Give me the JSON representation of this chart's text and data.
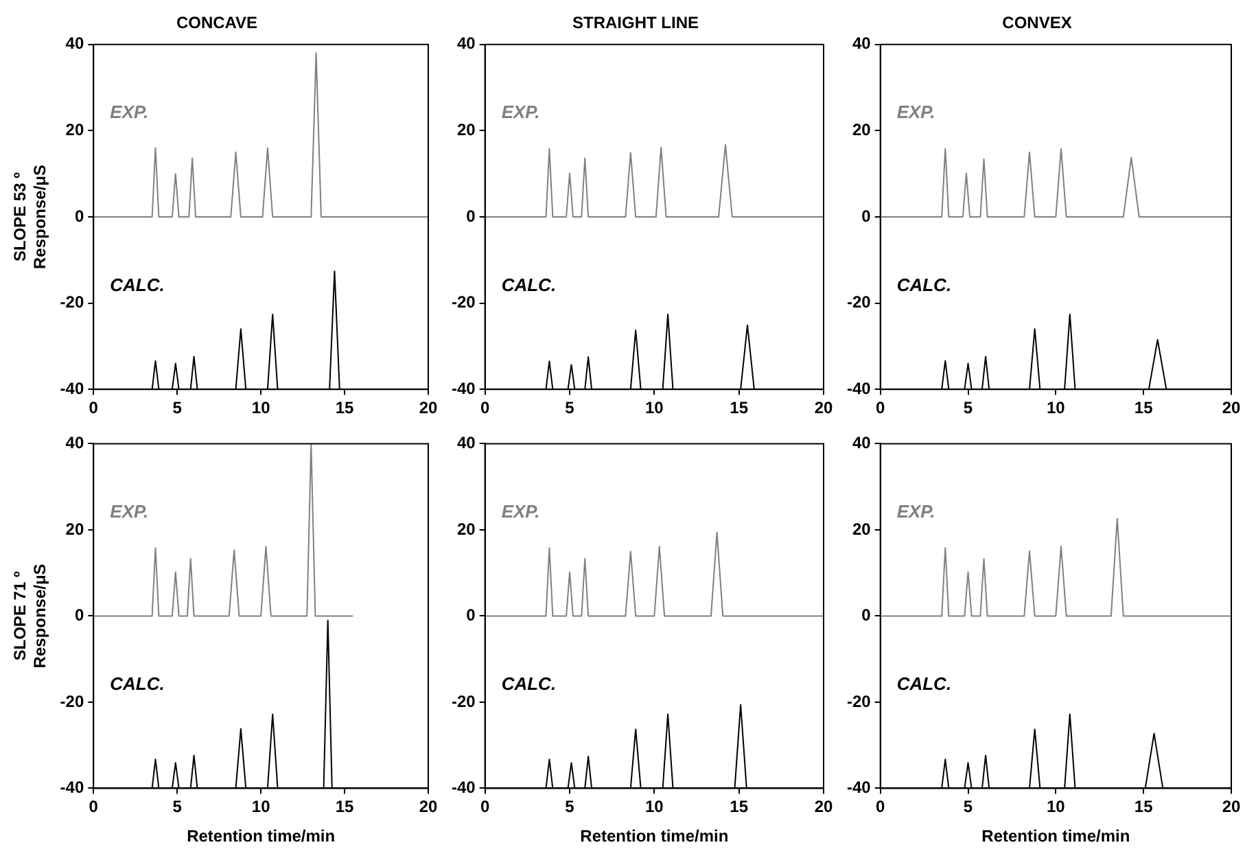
{
  "chart_data": [
    {
      "type": "line",
      "title": "CONCAVE",
      "ylabel": "SLOPE 53 º\nResponse/μS",
      "xlim": [
        0,
        20
      ],
      "ylim": [
        -40,
        40
      ],
      "xticks": [
        0,
        5,
        10,
        15,
        20
      ],
      "yticks": [
        -40,
        -20,
        0,
        20,
        40
      ],
      "grid": false,
      "legend": false,
      "marker": "none",
      "line_style": "solid",
      "series": [
        {
          "name": "EXP.",
          "color": "#808080",
          "x": [
            0,
            3.5,
            3.7,
            3.9,
            4.7,
            4.9,
            5.1,
            5.7,
            5.9,
            6.1,
            8.2,
            8.5,
            8.8,
            10.1,
            10.4,
            10.7,
            13.0,
            13.3,
            13.6,
            20
          ],
          "values": [
            0,
            0,
            16,
            0,
            0,
            10,
            0,
            0,
            13.6,
            0,
            0,
            15,
            0,
            0,
            16,
            0,
            0,
            38,
            0,
            0
          ]
        },
        {
          "name": "CALC.",
          "color": "#000000",
          "x": [
            3.3,
            3.5,
            3.7,
            3.9,
            4.7,
            4.9,
            5.1,
            5.8,
            6.0,
            6.2,
            8.5,
            8.8,
            9.1,
            10.4,
            10.7,
            11.0,
            14.1,
            14.4,
            14.7,
            17
          ],
          "values": [
            -40,
            -40,
            -33.4,
            -40,
            -40,
            -34,
            -40,
            -40,
            -32.4,
            -40,
            -40,
            -26,
            -40,
            -40,
            -22.6,
            -40,
            -40,
            -12.6,
            -40,
            -40
          ]
        }
      ]
    },
    {
      "type": "line",
      "title": "STRAIGHT LINE",
      "xlim": [
        0,
        20
      ],
      "ylim": [
        -40,
        40
      ],
      "xticks": [
        0,
        5,
        10,
        15,
        20
      ],
      "yticks": [
        -40,
        -20,
        0,
        20,
        40
      ],
      "grid": false,
      "legend": false,
      "marker": "none",
      "line_style": "solid",
      "series": [
        {
          "name": "EXP.",
          "color": "#808080",
          "x": [
            0,
            3.6,
            3.8,
            4.0,
            4.8,
            5.0,
            5.2,
            5.7,
            5.9,
            6.1,
            8.3,
            8.6,
            8.9,
            10.1,
            10.4,
            10.7,
            13.8,
            14.2,
            14.6,
            20
          ],
          "values": [
            0,
            0,
            15.8,
            0,
            0,
            10.1,
            0,
            0,
            13.6,
            0,
            0,
            14.9,
            0,
            0,
            16.1,
            0,
            0,
            16.7,
            0,
            0
          ]
        },
        {
          "name": "CALC.",
          "color": "#000000",
          "x": [
            3.3,
            3.6,
            3.8,
            4.0,
            4.9,
            5.1,
            5.3,
            5.9,
            6.1,
            6.3,
            8.6,
            8.9,
            9.2,
            10.5,
            10.8,
            11.1,
            15.1,
            15.5,
            15.9,
            19
          ],
          "values": [
            -40,
            -40,
            -33.5,
            -40,
            -40,
            -34.3,
            -40,
            -40,
            -32.5,
            -40,
            -40,
            -26.3,
            -40,
            -40,
            -22.6,
            -40,
            -40,
            -25.1,
            -40,
            -40
          ]
        }
      ]
    },
    {
      "type": "line",
      "title": "CONVEX",
      "xlim": [
        0,
        20
      ],
      "ylim": [
        -40,
        40
      ],
      "xticks": [
        0,
        5,
        10,
        15,
        20
      ],
      "yticks": [
        -40,
        -20,
        0,
        20,
        40
      ],
      "grid": false,
      "legend": false,
      "marker": "none",
      "line_style": "solid",
      "series": [
        {
          "name": "EXP.",
          "color": "#808080",
          "x": [
            0,
            3.5,
            3.7,
            3.9,
            4.7,
            4.9,
            5.1,
            5.7,
            5.9,
            6.1,
            8.2,
            8.5,
            8.8,
            10.0,
            10.3,
            10.6,
            13.85,
            14.3,
            14.75,
            20
          ],
          "values": [
            0,
            0,
            15.8,
            0,
            0,
            10.1,
            0,
            0,
            13.4,
            0,
            0,
            15,
            0,
            0,
            15.8,
            0,
            0,
            13.8,
            0,
            0
          ]
        },
        {
          "name": "CALC.",
          "color": "#000000",
          "x": [
            3.3,
            3.5,
            3.7,
            3.9,
            4.8,
            5.0,
            5.2,
            5.8,
            6.0,
            6.2,
            8.5,
            8.8,
            9.1,
            10.5,
            10.8,
            11.1,
            15.3,
            15.8,
            16.3,
            19
          ],
          "values": [
            -40,
            -40,
            -33.4,
            -40,
            -40,
            -34,
            -40,
            -40,
            -32.4,
            -40,
            -40,
            -26,
            -40,
            -40,
            -22.6,
            -40,
            -40,
            -28.5,
            -40,
            -40
          ]
        }
      ]
    },
    {
      "type": "line",
      "xlabel": "Retention time/min",
      "ylabel": "SLOPE 71 º\nResponse/μS",
      "xlim": [
        0,
        20
      ],
      "ylim": [
        -40,
        40
      ],
      "xticks": [
        0,
        5,
        10,
        15,
        20
      ],
      "yticks": [
        -40,
        -20,
        0,
        20,
        40
      ],
      "grid": false,
      "legend": false,
      "marker": "none",
      "line_style": "solid",
      "series": [
        {
          "name": "EXP.",
          "color": "#808080",
          "x": [
            0,
            3.5,
            3.7,
            3.9,
            4.7,
            4.9,
            5.1,
            5.6,
            5.8,
            6.0,
            8.1,
            8.4,
            8.7,
            10.0,
            10.3,
            10.6,
            12.75,
            13.0,
            13.25,
            15.5
          ],
          "values": [
            0,
            0,
            15.8,
            0,
            0,
            10.2,
            0,
            0,
            13.3,
            0,
            0,
            15.3,
            0,
            0,
            16.1,
            0,
            0,
            40,
            0,
            0
          ]
        },
        {
          "name": "CALC.",
          "color": "#000000",
          "x": [
            3.3,
            3.5,
            3.7,
            3.9,
            4.7,
            4.9,
            5.1,
            5.8,
            6.0,
            6.2,
            8.5,
            8.8,
            9.1,
            10.4,
            10.7,
            11.0,
            13.75,
            14.0,
            14.25,
            15.5
          ],
          "values": [
            -40,
            -40,
            -33.3,
            -40,
            -40,
            -34.1,
            -40,
            -40,
            -32.4,
            -40,
            -40,
            -26.2,
            -40,
            -40,
            -22.8,
            -40,
            -40,
            -1,
            -40,
            -40
          ]
        }
      ]
    },
    {
      "type": "line",
      "xlabel": "Retention time/min",
      "xlim": [
        0,
        20
      ],
      "ylim": [
        -40,
        40
      ],
      "xticks": [
        0,
        5,
        10,
        15,
        20
      ],
      "yticks": [
        -40,
        -20,
        0,
        20,
        40
      ],
      "grid": false,
      "legend": false,
      "marker": "none",
      "line_style": "solid",
      "series": [
        {
          "name": "EXP.",
          "color": "#808080",
          "x": [
            0,
            3.6,
            3.8,
            4.0,
            4.8,
            5.0,
            5.2,
            5.7,
            5.9,
            6.1,
            8.3,
            8.6,
            8.9,
            10.0,
            10.3,
            10.6,
            13.35,
            13.7,
            14.05,
            20
          ],
          "values": [
            0,
            0,
            15.8,
            0,
            0,
            10.2,
            0,
            0,
            13.3,
            0,
            0,
            15,
            0,
            0,
            16.1,
            0,
            0,
            19.4,
            0,
            0
          ]
        },
        {
          "name": "CALC.",
          "color": "#000000",
          "x": [
            3.3,
            3.6,
            3.8,
            4.0,
            4.9,
            5.1,
            5.3,
            5.9,
            6.1,
            6.3,
            8.6,
            8.9,
            9.2,
            10.5,
            10.8,
            11.1,
            14.75,
            15.1,
            15.45,
            18.5
          ],
          "values": [
            -40,
            -40,
            -33.3,
            -40,
            -40,
            -34.1,
            -40,
            -40,
            -32.6,
            -40,
            -40,
            -26.3,
            -40,
            -40,
            -22.8,
            -40,
            -40,
            -20.6,
            -40,
            -40
          ]
        }
      ]
    },
    {
      "type": "line",
      "xlabel": "Retention time/min",
      "xlim": [
        0,
        20
      ],
      "ylim": [
        -40,
        40
      ],
      "xticks": [
        0,
        5,
        10,
        15,
        20
      ],
      "yticks": [
        -40,
        -20,
        0,
        20,
        40
      ],
      "grid": false,
      "legend": false,
      "marker": "none",
      "line_style": "solid",
      "series": [
        {
          "name": "EXP.",
          "color": "#808080",
          "x": [
            0,
            3.5,
            3.7,
            3.9,
            4.8,
            5.0,
            5.2,
            5.7,
            5.9,
            6.1,
            8.2,
            8.5,
            8.8,
            10.0,
            10.3,
            10.6,
            13.15,
            13.5,
            13.85,
            20
          ],
          "values": [
            0,
            0,
            15.8,
            0,
            0,
            10.2,
            0,
            0,
            13.3,
            0,
            0,
            15.1,
            0,
            0,
            16.1,
            0,
            0,
            22.6,
            0,
            0
          ]
        },
        {
          "name": "CALC.",
          "color": "#000000",
          "x": [
            3.3,
            3.5,
            3.7,
            3.9,
            4.8,
            5.0,
            5.2,
            5.8,
            6.0,
            6.2,
            8.5,
            8.8,
            9.1,
            10.5,
            10.8,
            11.1,
            15.1,
            15.6,
            16.1,
            19
          ],
          "values": [
            -40,
            -40,
            -33.3,
            -40,
            -40,
            -34.1,
            -40,
            -40,
            -32.4,
            -40,
            -40,
            -26.3,
            -40,
            -40,
            -22.8,
            -40,
            -40,
            -27.3,
            -40,
            -40
          ]
        }
      ]
    }
  ]
}
